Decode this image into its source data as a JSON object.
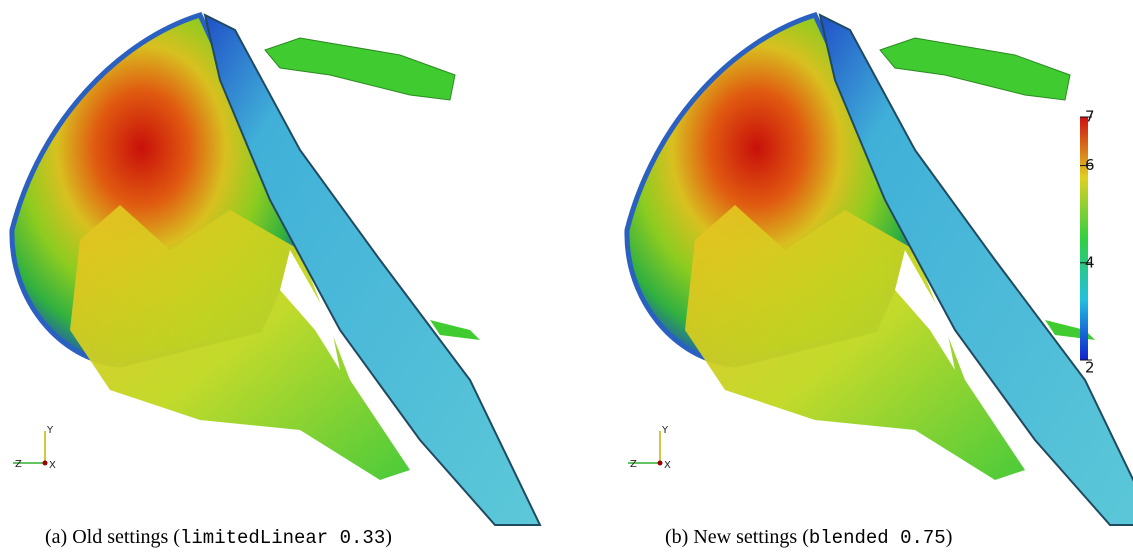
{
  "panels": [
    {
      "caption": {
        "prefix": "(a) Old settings (",
        "code": "limitedLinear 0.33",
        "suffix": ")"
      },
      "axes": {
        "y": "Y",
        "z": "Z",
        "x": "X"
      }
    },
    {
      "caption": {
        "prefix": "(b) New settings (",
        "code": "blended 0.75",
        "suffix": ")"
      },
      "axes": {
        "y": "Y",
        "z": "Z",
        "x": "X"
      }
    }
  ],
  "colorbar": {
    "range": [
      2,
      7
    ],
    "ticks": [
      2,
      4,
      6,
      7
    ]
  }
}
